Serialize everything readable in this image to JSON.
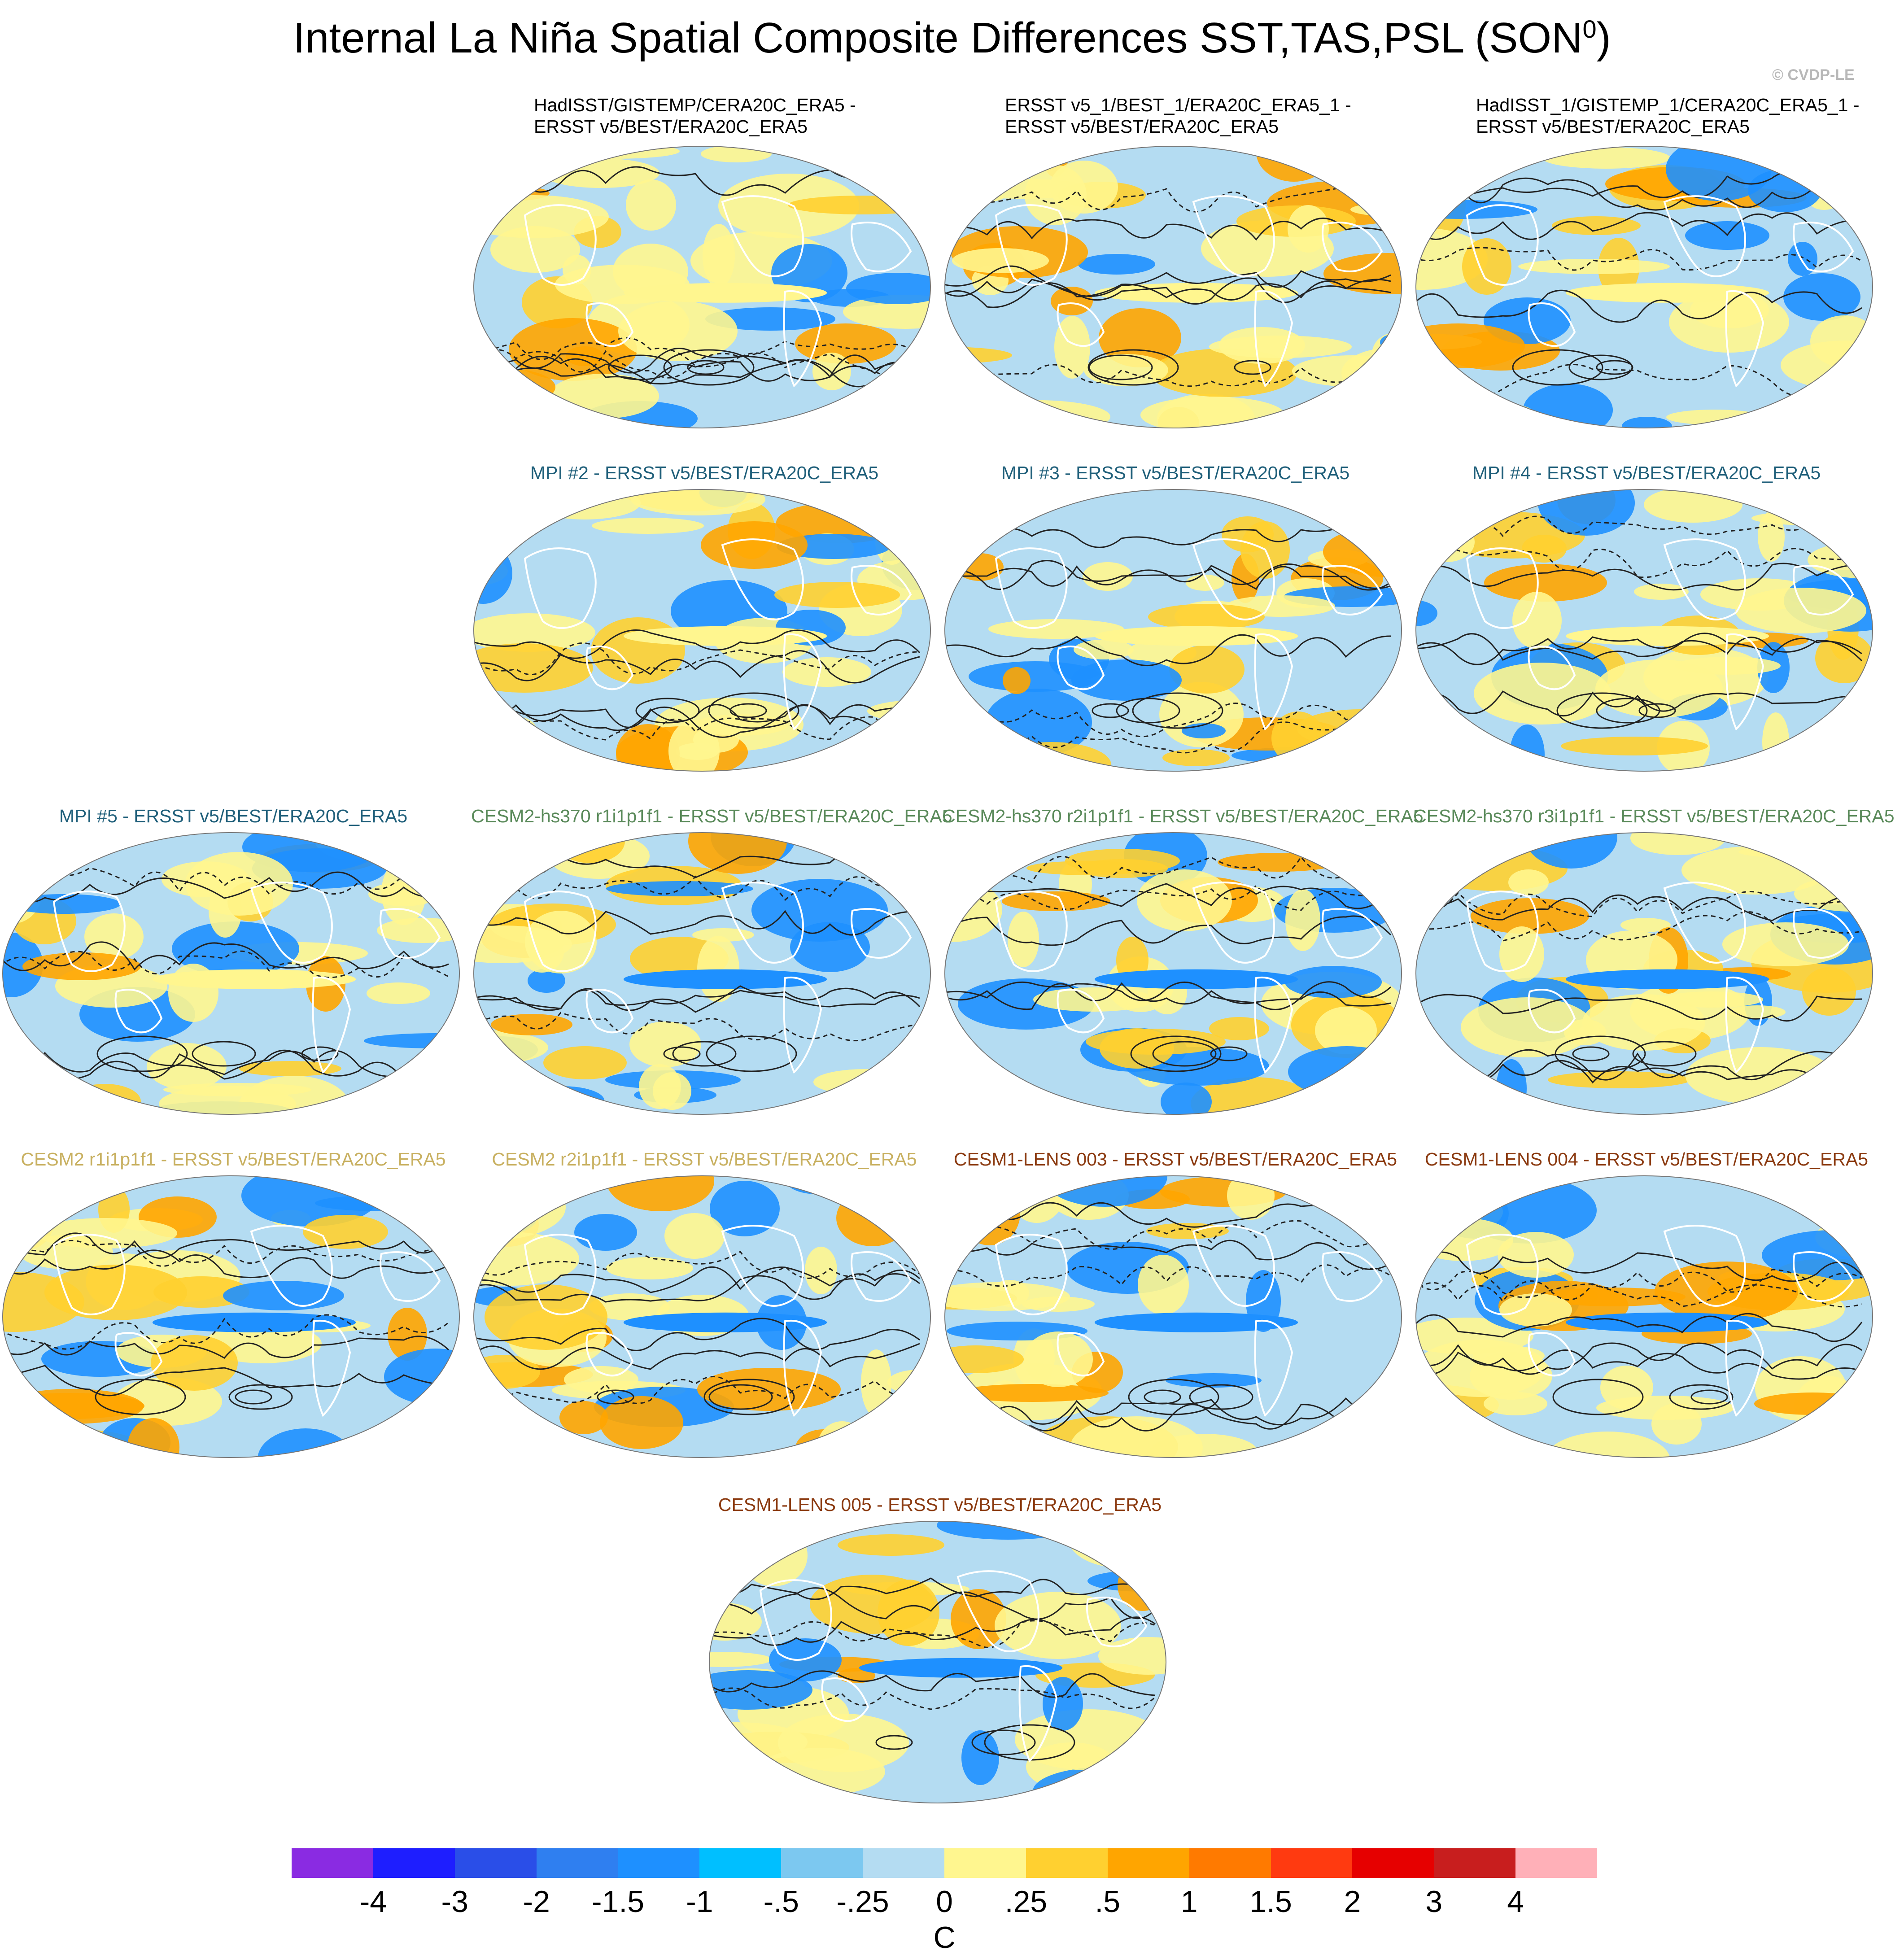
{
  "title": "Internal La Niña Spatial Composite Differences SST,TAS,PSL (SON",
  "title_sup": "0",
  "title_close": ")",
  "credit": "© CVDP-LE",
  "panels": [
    {
      "line1": "HadISST/GISTEMP/CERA20C_ERA5 -",
      "line2": "ERSST v5/BEST/ERA20C_ERA5",
      "color": "#000000"
    },
    {
      "line1": "ERSST v5_1/BEST_1/ERA20C_ERA5_1 -",
      "line2": "ERSST v5/BEST/ERA20C_ERA5",
      "color": "#000000"
    },
    {
      "line1": "HadISST_1/GISTEMP_1/CERA20C_ERA5_1 -",
      "line2": "ERSST v5/BEST/ERA20C_ERA5",
      "color": "#000000"
    },
    {
      "line1": "MPI #2 - ERSST v5/BEST/ERA20C_ERA5",
      "color": "#1f5f7a"
    },
    {
      "line1": "MPI #3 - ERSST v5/BEST/ERA20C_ERA5",
      "color": "#1f5f7a"
    },
    {
      "line1": "MPI #4 - ERSST v5/BEST/ERA20C_ERA5",
      "color": "#1f5f7a"
    },
    {
      "line1": "MPI #5 - ERSST v5/BEST/ERA20C_ERA5",
      "color": "#1f5f7a"
    },
    {
      "line1": "CESM2-hs370 r1i1p1f1 - ERSST v5/BEST/ERA20C_ERA5",
      "color": "#5a8a5a"
    },
    {
      "line1": "CESM2-hs370 r2i1p1f1 - ERSST v5/BEST/ERA20C_ERA5",
      "color": "#5a8a5a"
    },
    {
      "line1": "CESM2-hs370 r3i1p1f1 - ERSST v5/BEST/ERA20C_ERA5",
      "color": "#5a8a5a"
    },
    {
      "line1": "CESM2 r1i1p1f1 - ERSST v5/BEST/ERA20C_ERA5",
      "color": "#c8b060"
    },
    {
      "line1": "CESM2 r2i1p1f1 - ERSST v5/BEST/ERA20C_ERA5",
      "color": "#c8b060"
    },
    {
      "line1": "CESM1-LENS 003 - ERSST v5/BEST/ERA20C_ERA5",
      "color": "#8b3a10"
    },
    {
      "line1": "CESM1-LENS 004 - ERSST v5/BEST/ERA20C_ERA5",
      "color": "#8b3a10"
    },
    {
      "line1": "CESM1-LENS 005 - ERSST v5/BEST/ERA20C_ERA5",
      "color": "#8b3a10"
    }
  ],
  "colorbar": {
    "colors": [
      "#8a2be2",
      "#1e1eff",
      "#2a4ee8",
      "#2f7ff0",
      "#1e90ff",
      "#00bfff",
      "#7cc8f0",
      "#b4dcf2",
      "#fff68f",
      "#ffd030",
      "#ffa500",
      "#ff7a00",
      "#ff3a10",
      "#e60000",
      "#c81e1e",
      "#ffb0b8"
    ],
    "labels": [
      "-4",
      "-3",
      "-2",
      "-1.5",
      "-1",
      "-.5",
      "-.25",
      "0",
      ".25",
      ".5",
      "1",
      "1.5",
      "2",
      "3",
      "4"
    ],
    "unit": "C"
  },
  "map_colors": {
    "yellow": "#fff68f",
    "lightblue": "#b4dcf2",
    "orange": "#ffd030",
    "blue": "#1e90ff",
    "darkorange": "#ffa500",
    "coast": "#ffffff",
    "contour": "#222222"
  }
}
